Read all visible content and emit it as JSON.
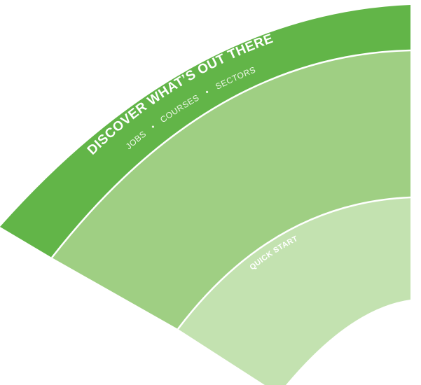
{
  "outer_band": {
    "title": "DISCOVER WHAT’S OUT THERE",
    "items": [
      "JOBS",
      "COURSES",
      "SECTORS"
    ],
    "separator": "•",
    "color": "#62b548"
  },
  "middle_band": {
    "color": "#9fcf83"
  },
  "inner_band": {
    "label": "QUICK START",
    "color": "#c3e2b0"
  },
  "divider_color": "#ffffff"
}
